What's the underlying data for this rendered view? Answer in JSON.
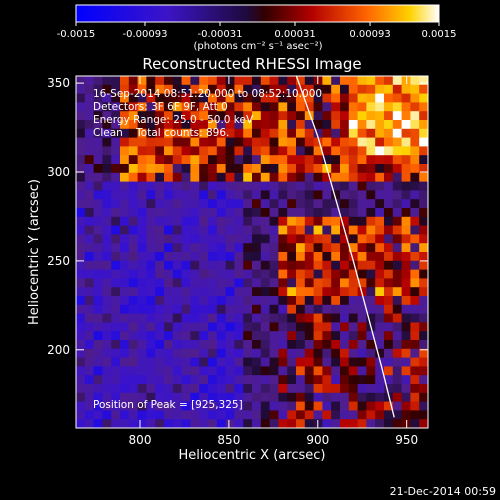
{
  "chart_data": {
    "type": "heatmap",
    "title": "Reconstructed RHESSI Image",
    "xlabel": "Heliocentric X (arcsec)",
    "ylabel": "Heliocentric Y (arcsec)",
    "xlim": [
      764,
      962
    ],
    "ylim": [
      156,
      354
    ],
    "xticks": [
      800,
      850,
      900,
      950
    ],
    "yticks": [
      200,
      250,
      300,
      350
    ],
    "colorbar": {
      "range": [
        -0.0015,
        0.0015
      ],
      "ticks": [
        -0.0015,
        -0.00093,
        -0.00031,
        0.00031,
        0.00093,
        0.0015
      ],
      "tick_labels": [
        "-0.0015",
        "-0.00093",
        "-0.00031",
        "0.00031",
        "0.00093",
        "0.0015"
      ],
      "units_label": "(photons cm⁻² s⁻¹ asec⁻²)"
    },
    "annotations": [
      "16-Sep-2014 08:51:20.000 to 08:52:10.000",
      "Detectors: 3F 6F 9F, Att 0",
      "Energy Range: 25.0 - 50.0 keV",
      "Clean    Total counts: 896."
    ],
    "peak_label": "Position of Peak = [925,325]",
    "peak": [
      925,
      325
    ],
    "limb_curve": [
      [
        888,
        354
      ],
      [
        900,
        320
      ],
      [
        910,
        285
      ],
      [
        920,
        250
      ],
      [
        928,
        220
      ],
      [
        936,
        190
      ],
      [
        943,
        162
      ]
    ],
    "grid_size": 40,
    "intensity_regions": [
      {
        "region": "upper band",
        "x": [
          790,
          962
        ],
        "y": [
          295,
          354
        ],
        "level": "high positive"
      },
      {
        "region": "upper-right corner",
        "x": [
          915,
          962
        ],
        "y": [
          310,
          354
        ],
        "level": "maximum"
      },
      {
        "region": "right middle",
        "x": [
          880,
          962
        ],
        "y": [
          230,
          275
        ],
        "level": "high positive"
      },
      {
        "region": "left side",
        "x": [
          764,
          860
        ],
        "y": [
          156,
          295
        ],
        "level": "negative"
      },
      {
        "region": "lower right",
        "x": [
          880,
          962
        ],
        "y": [
          156,
          230
        ],
        "level": "mixed"
      }
    ]
  },
  "footer_date": "21-Dec-2014 00:59"
}
